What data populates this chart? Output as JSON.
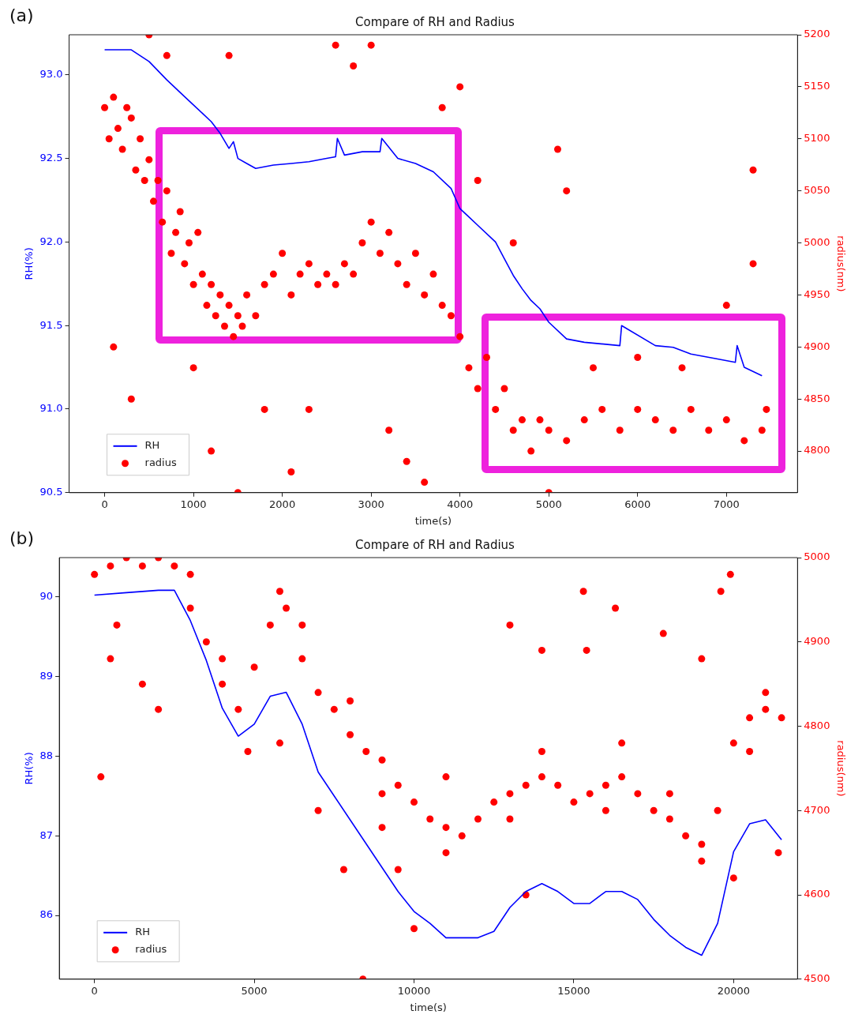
{
  "chart_data": [
    {
      "type": "line",
      "title": "Compare of RH and Radius",
      "xlabel": "time(s)",
      "ylabel": "RH(%)",
      "y2label": "radius(nm)",
      "annotations": [
        "(a)"
      ],
      "xlim": [
        -400,
        7800
      ],
      "xticks": [
        0,
        1000,
        2000,
        3000,
        4000,
        5000,
        6000,
        7000
      ],
      "ylim": [
        90.5,
        93.24
      ],
      "yticks": [
        90.5,
        {
          "value": 91,
          "label": "91.0"
        },
        91.5,
        {
          "value": 92,
          "label": "92.0"
        },
        92.5,
        {
          "value": 93,
          "label": "93.0"
        }
      ],
      "y2lim": [
        4760,
        5200
      ],
      "y2ticks": [
        4800,
        4850,
        4900,
        4950,
        5000,
        5050,
        5100,
        5150,
        5200
      ],
      "legend": "bottom left",
      "grid": false,
      "series": [
        {
          "name": "RH",
          "color": "#0000ff",
          "marker": "none",
          "x": [
            0,
            300,
            500,
            700,
            900,
            1100,
            1200,
            1300,
            1400,
            1450,
            1500,
            1600,
            1700,
            1900,
            2100,
            2300,
            2500,
            2600,
            2620,
            2700,
            2900,
            3100,
            3120,
            3300,
            3500,
            3700,
            3900,
            4000,
            4100,
            4200,
            4400,
            4500,
            4600,
            4700,
            4800,
            4900,
            5000,
            5200,
            5400,
            5800,
            5820,
            6200,
            6400,
            6600,
            6900,
            7100,
            7120,
            7200,
            7400
          ],
          "values": [
            93.15,
            93.15,
            93.08,
            92.97,
            92.87,
            92.77,
            92.72,
            92.65,
            92.56,
            92.6,
            92.5,
            92.47,
            92.44,
            92.46,
            92.47,
            92.48,
            92.5,
            92.51,
            92.62,
            92.52,
            92.54,
            92.54,
            92.62,
            92.5,
            92.47,
            92.42,
            92.32,
            92.2,
            92.15,
            92.1,
            92.0,
            91.9,
            91.8,
            91.72,
            91.65,
            91.6,
            91.52,
            91.42,
            91.4,
            91.38,
            91.5,
            91.38,
            91.37,
            91.33,
            91.3,
            91.28,
            91.38,
            91.25,
            91.2
          ]
        },
        {
          "name": "radius",
          "type": "scatter",
          "axis": "y2",
          "color": "#ff0000",
          "marker": "circle",
          "x": [
            0,
            50,
            100,
            150,
            200,
            250,
            300,
            350,
            400,
            450,
            500,
            550,
            600,
            650,
            700,
            750,
            800,
            850,
            900,
            950,
            1000,
            1050,
            1100,
            1150,
            1200,
            1250,
            1300,
            1350,
            1400,
            1450,
            1500,
            1550,
            1600,
            1700,
            1800,
            1900,
            2000,
            2100,
            2200,
            2300,
            2400,
            2500,
            2600,
            2700,
            2800,
            2900,
            3000,
            3100,
            3200,
            3300,
            3400,
            3500,
            3600,
            3700,
            3800,
            3900,
            4000,
            4100,
            4200,
            4300,
            4400,
            4500,
            4600,
            4700,
            4800,
            4900,
            5000,
            5200,
            5400,
            5600,
            5800,
            6000,
            6200,
            6400,
            6600,
            6800,
            7000,
            7200,
            7400,
            7450,
            100,
            300,
            500,
            700,
            1000,
            1200,
            1400,
            1500,
            1800,
            2100,
            2300,
            2600,
            2800,
            3000,
            3200,
            3400,
            3600,
            3800,
            4000,
            4200,
            4600,
            5000,
            5100,
            5200,
            5500,
            6000,
            6500,
            7000,
            7300,
            7300
          ],
          "values": [
            5130,
            5100,
            5140,
            5110,
            5090,
            5130,
            5120,
            5070,
            5100,
            5060,
            5080,
            5040,
            5060,
            5020,
            5050,
            4990,
            5010,
            5030,
            4980,
            5000,
            4960,
            5010,
            4970,
            4940,
            4960,
            4930,
            4950,
            4920,
            4940,
            4910,
            4930,
            4920,
            4950,
            4930,
            4960,
            4970,
            4990,
            4950,
            4970,
            4980,
            4960,
            4970,
            4960,
            4980,
            4970,
            5000,
            5020,
            4990,
            5010,
            4980,
            4960,
            4990,
            4950,
            4970,
            4940,
            4930,
            4910,
            4880,
            4860,
            4890,
            4840,
            4860,
            4820,
            4830,
            4800,
            4830,
            4820,
            4810,
            4830,
            4840,
            4820,
            4840,
            4830,
            4820,
            4840,
            4820,
            4830,
            4810,
            4820,
            4840,
            4900,
            4850,
            5200,
            5180,
            4880,
            4800,
            5180,
            4760,
            4840,
            4780,
            4840,
            5190,
            5170,
            5190,
            4820,
            4790,
            4770,
            5130,
            5150,
            5060,
            5000,
            4760,
            5090,
            5050,
            4880,
            4890,
            4880,
            4940,
            5070,
            4980
          ]
        }
      ]
    },
    {
      "type": "line",
      "title": "Compare of RH and Radius",
      "xlabel": "time(s)",
      "ylabel": "RH(%)",
      "y2label": "radius(nm)",
      "annotations": [
        "(b)"
      ],
      "xlim": [
        -1100,
        22000
      ],
      "xticks": [
        0,
        5000,
        10000,
        15000,
        20000
      ],
      "ylim": [
        85.2,
        90.49
      ],
      "yticks": [
        86,
        87,
        88,
        89,
        90
      ],
      "y2lim": [
        4500,
        5000
      ],
      "y2ticks": [
        4500,
        4600,
        4700,
        4800,
        4900,
        5000
      ],
      "legend": "bottom left",
      "grid": false,
      "series": [
        {
          "name": "RH",
          "color": "#0000ff",
          "marker": "none",
          "x": [
            0,
            1000,
            2000,
            2500,
            3000,
            3500,
            4000,
            4500,
            5000,
            5500,
            6000,
            6500,
            7000,
            7500,
            8000,
            8500,
            9000,
            9500,
            10000,
            10500,
            11000,
            12000,
            12500,
            13000,
            13500,
            14000,
            14500,
            15000,
            15500,
            16000,
            16500,
            17000,
            17500,
            18000,
            18500,
            19000,
            19500,
            20000,
            20500,
            21000,
            21500
          ],
          "values": [
            90.02,
            90.05,
            90.08,
            90.08,
            89.7,
            89.2,
            88.6,
            88.25,
            88.4,
            88.75,
            88.8,
            88.4,
            87.8,
            87.5,
            87.2,
            86.9,
            86.6,
            86.3,
            86.05,
            85.9,
            85.72,
            85.72,
            85.8,
            86.1,
            86.3,
            86.4,
            86.3,
            86.15,
            86.15,
            86.3,
            86.3,
            86.2,
            85.95,
            85.75,
            85.6,
            85.5,
            85.9,
            86.8,
            87.15,
            87.2,
            86.95
          ]
        },
        {
          "name": "radius",
          "type": "scatter",
          "axis": "y2",
          "color": "#ff0000",
          "marker": "circle",
          "x": [
            0,
            500,
            1000,
            1500,
            2000,
            2500,
            3000,
            3500,
            4000,
            4500,
            5000,
            5500,
            6000,
            6500,
            7000,
            7500,
            8000,
            8500,
            9000,
            9500,
            10000,
            10500,
            11000,
            11500,
            12000,
            12500,
            13000,
            13500,
            14000,
            14500,
            15000,
            15500,
            16000,
            16500,
            17000,
            17500,
            18000,
            18500,
            19000,
            19500,
            20000,
            20500,
            21000,
            21500,
            3000,
            4000,
            5800,
            5800,
            6500,
            8000,
            9000,
            11000,
            13000,
            14000,
            16000,
            16500,
            18000,
            19000,
            20500,
            21000,
            200,
            500,
            700,
            1500,
            2000,
            4800,
            7000,
            7800,
            8400,
            9000,
            9500,
            10000,
            11000,
            13000,
            13500,
            14000,
            15300,
            15400,
            16300,
            17800,
            19000,
            19600,
            19900,
            20000,
            21400
          ],
          "values": [
            4980,
            4990,
            5000,
            4990,
            5000,
            4990,
            4940,
            4900,
            4850,
            4820,
            4870,
            4920,
            4940,
            4880,
            4840,
            4820,
            4790,
            4770,
            4760,
            4730,
            4710,
            4690,
            4680,
            4670,
            4690,
            4710,
            4720,
            4730,
            4740,
            4730,
            4710,
            4720,
            4730,
            4740,
            4720,
            4700,
            4690,
            4670,
            4660,
            4700,
            4780,
            4810,
            4820,
            4810,
            4980,
            4880,
            4960,
            4780,
            4920,
            4830,
            4720,
            4650,
            4690,
            4770,
            4700,
            4780,
            4720,
            4640,
            4770,
            4840,
            4740,
            4880,
            4920,
            4850,
            4820,
            4770,
            4700,
            4630,
            4500,
            4680,
            4630,
            4560,
            4740,
            4920,
            4600,
            4890,
            4960,
            4890,
            4940,
            4910,
            4880,
            4960,
            4980,
            4620,
            4650
          ]
        }
      ]
    }
  ]
}
